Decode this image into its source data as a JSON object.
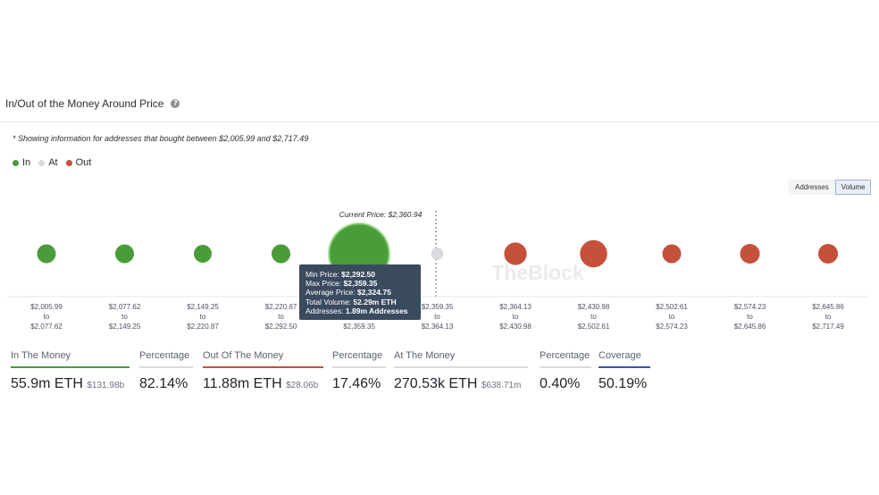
{
  "header": {
    "title": "In/Out of the Money Around Price",
    "help_icon": "question-circle-icon",
    "note": "* Showing information for addresses that bought between $2,005.99 and $2,717.49"
  },
  "legend": [
    {
      "label": "In",
      "color": "#4a9c3a"
    },
    {
      "label": "At",
      "color": "#d9dbde"
    },
    {
      "label": "Out",
      "color": "#c5503b"
    }
  ],
  "toggle": {
    "addresses_label": "Addresses",
    "volume_label": "Volume",
    "selected": "Volume"
  },
  "current_price_label": "Current Price: $2,360.94",
  "watermark": "TheBlock",
  "chart_data": {
    "type": "bubble",
    "size_metric": "Volume",
    "current_price": 2360.94,
    "buckets": [
      {
        "from": "$2,005.99",
        "to": "$2,077.62",
        "status": "In",
        "size": 1.0
      },
      {
        "from": "$2,077.62",
        "to": "$2,149.25",
        "status": "In",
        "size": 1.0
      },
      {
        "from": "$2,149.25",
        "to": "$2,220.87",
        "status": "In",
        "size": 0.95
      },
      {
        "from": "$2,220.87",
        "to": "$2,292.50",
        "status": "In",
        "size": 1.0
      },
      {
        "from": "$2,292.50",
        "to": "$2,359.35",
        "status": "In",
        "size": 3.2
      },
      {
        "from": "$2,359.35",
        "to": "$2,364.13",
        "status": "At",
        "size": 0.65
      },
      {
        "from": "$2,364.13",
        "to": "$2,430.98",
        "status": "Out",
        "size": 1.2
      },
      {
        "from": "$2,430.98",
        "to": "$2,502.61",
        "status": "Out",
        "size": 1.45
      },
      {
        "from": "$2,502.61",
        "to": "$2,574.23",
        "status": "Out",
        "size": 1.0
      },
      {
        "from": "$2,574.23",
        "to": "$2,645.86",
        "status": "Out",
        "size": 1.05
      },
      {
        "from": "$2,645.86",
        "to": "$2,717.49",
        "status": "Out",
        "size": 1.05
      }
    ],
    "tooltip": {
      "bucket_index": 4,
      "min_price_label": "Min Price:",
      "min_price": "$2,292.50",
      "max_price_label": "Max Price:",
      "max_price": "$2,359.35",
      "avg_price_label": "Average Price:",
      "avg_price": "$2,324.75",
      "volume_label": "Total Volume:",
      "volume": "52.29m ETH",
      "addresses_label": "Addresses:",
      "addresses": "1.89m Addresses"
    }
  },
  "stats": [
    {
      "label": "In The Money",
      "value": "55.9m ETH",
      "sub": "$131.98b",
      "color": "#4a9c3a"
    },
    {
      "label": "Percentage",
      "value": "82.14%",
      "sub": "",
      "color": "#d9dbde"
    },
    {
      "label": "Out Of The Money",
      "value": "11.88m ETH",
      "sub": "$28.06b",
      "color": "#c5503b"
    },
    {
      "label": "Percentage",
      "value": "17.46%",
      "sub": "",
      "color": "#d9dbde"
    },
    {
      "label": "At The Money",
      "value": "270.53k ETH",
      "sub": "$638.71m",
      "color": "#d9dbde"
    },
    {
      "label": "Percentage",
      "value": "0.40%",
      "sub": "",
      "color": "#d9dbde"
    },
    {
      "label": "Coverage",
      "value": "50.19%",
      "sub": "",
      "color": "#3f51b5"
    }
  ]
}
